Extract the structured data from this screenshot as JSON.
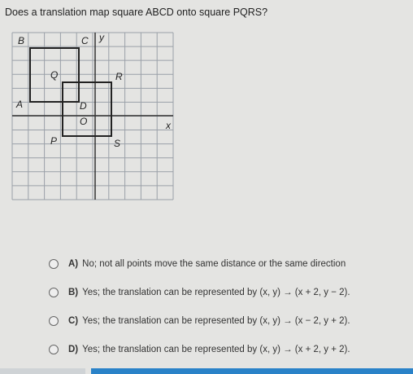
{
  "question": "Does a translation map square ABCD onto square PQRS?",
  "graph": {
    "point_labels": [
      "A",
      "B",
      "C",
      "D",
      "P",
      "Q",
      "R",
      "S"
    ],
    "origin_label": "O",
    "x_axis_label": "x",
    "y_axis_label": "y"
  },
  "options": [
    {
      "letter": "A)",
      "text": "No; not all points move the same distance or the same direction"
    },
    {
      "letter": "B)",
      "text": "Yes; the translation can be represented by (x, y) → (x + 2, y − 2)."
    },
    {
      "letter": "C)",
      "text": "Yes; the translation can be represented by (x, y) → (x − 2, y + 2)."
    },
    {
      "letter": "D)",
      "text": "Yes; the translation can be represented by (x, y) → (x + 2, y + 2)."
    }
  ]
}
